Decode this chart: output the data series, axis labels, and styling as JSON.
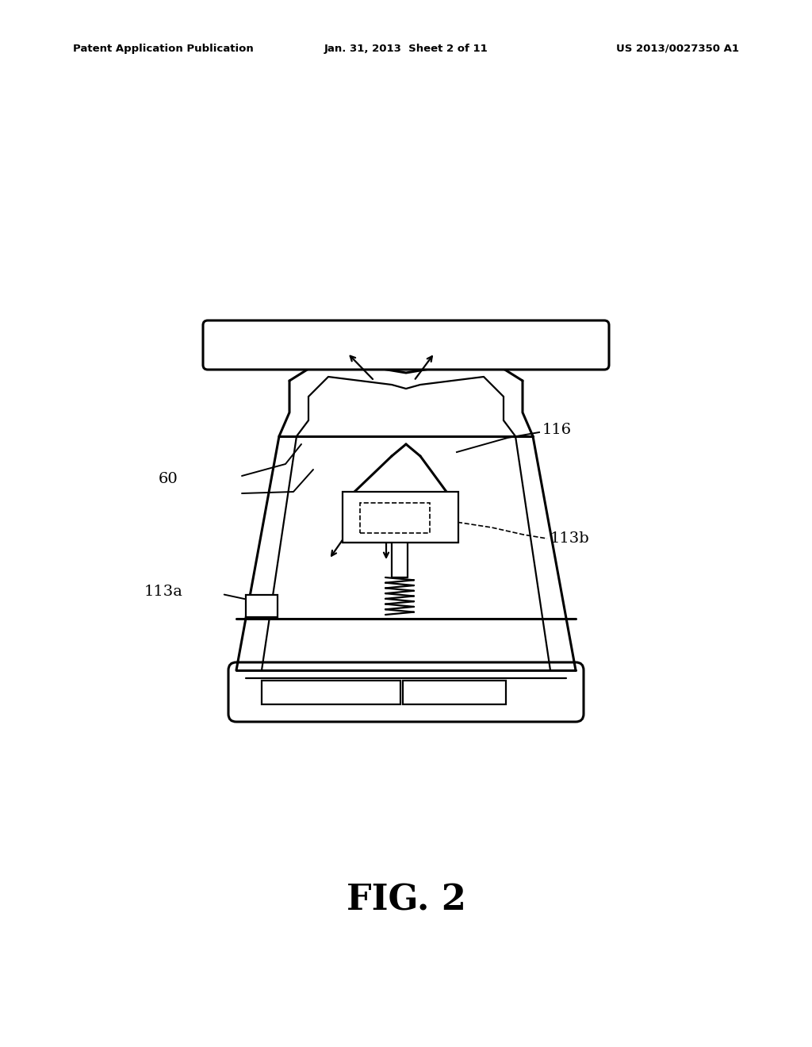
{
  "title_left": "Patent Application Publication",
  "title_center": "Jan. 31, 2013  Sheet 2 of 11",
  "title_right": "US 2013/0027350 A1",
  "fig_label": "FIG. 2",
  "bg_color": "#ffffff",
  "line_color": "#000000"
}
